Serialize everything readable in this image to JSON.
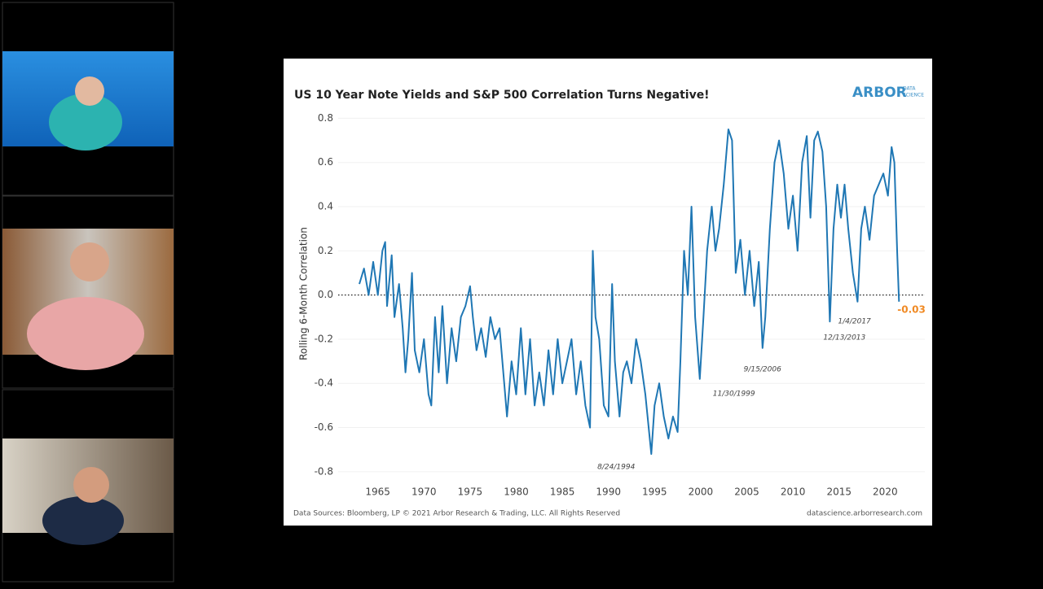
{
  "chart_data": {
    "type": "line",
    "title": "US 10 Year Note Yields and S&P 500 Correlation Turns Negative!",
    "y_label": "Rolling 6-Month Correlation",
    "logo": "ARBOR",
    "logo_sub": [
      "DATA",
      "SCIENCE"
    ],
    "source": "Data Sources: Bloomberg, LP © 2021 Arbor Research & Trading, LLC. All Rights Reserved",
    "url": "datascience.arborresearch.com",
    "xlim": [
      1960.7,
      2024.3
    ],
    "ylim": [
      -0.83,
      0.82
    ],
    "xticks": [
      1965,
      1970,
      1975,
      1980,
      1985,
      1990,
      1995,
      2000,
      2005,
      2010,
      2015,
      2020
    ],
    "yticks": [
      0.8,
      0.6,
      0.4,
      0.2,
      {
        "value": 0,
        "label": "0.0"
      },
      -0.2,
      -0.4,
      -0.6,
      -0.8
    ],
    "hline": 0,
    "grid": true,
    "series": [
      {
        "name": "Rolling 6-Month Correlation",
        "color": "#1f77b4",
        "x": [
          1963.0,
          1963.5,
          1964.0,
          1964.5,
          1965.0,
          1965.5,
          1965.8,
          1966.0,
          1966.5,
          1966.8,
          1967.3,
          1967.7,
          1968.0,
          1968.3,
          1968.7,
          1969.0,
          1969.5,
          1970.0,
          1970.5,
          1970.8,
          1971.2,
          1971.6,
          1972.0,
          1972.5,
          1973.0,
          1973.5,
          1974.0,
          1974.5,
          1975.0,
          1975.3,
          1975.7,
          1976.2,
          1976.7,
          1977.2,
          1977.7,
          1978.2,
          1978.7,
          1979.0,
          1979.5,
          1980.0,
          1980.5,
          1981.0,
          1981.5,
          1982.0,
          1982.5,
          1983.0,
          1983.5,
          1984.0,
          1984.5,
          1985.0,
          1985.5,
          1986.0,
          1986.5,
          1987.0,
          1987.5,
          1988.0,
          1988.3,
          1988.6,
          1989.0,
          1989.5,
          1990.0,
          1990.4,
          1990.7,
          1991.2,
          1991.6,
          1992.0,
          1992.5,
          1993.0,
          1993.5,
          1994.0,
          1994.65,
          1995.0,
          1995.5,
          1996.0,
          1996.5,
          1997.0,
          1997.5,
          1997.8,
          1998.2,
          1998.6,
          1999.0,
          1999.4,
          1999.9,
          2000.3,
          2000.7,
          2001.2,
          2001.6,
          2002.0,
          2002.5,
          2003.0,
          2003.4,
          2003.8,
          2004.3,
          2004.8,
          2005.3,
          2005.8,
          2006.3,
          2006.7,
          2007.0,
          2007.5,
          2008.0,
          2008.5,
          2009.0,
          2009.5,
          2010.0,
          2010.5,
          2011.0,
          2011.5,
          2011.9,
          2012.3,
          2012.7,
          2013.2,
          2013.6,
          2014.0,
          2014.4,
          2014.8,
          2015.2,
          2015.6,
          2016.0,
          2016.5,
          2017.0,
          2017.4,
          2017.8,
          2018.3,
          2018.8,
          2019.3,
          2019.8,
          2020.3,
          2020.7,
          2021.0,
          2021.3,
          2021.5
        ],
        "values": [
          0.05,
          0.12,
          0.0,
          0.15,
          0.0,
          0.2,
          0.24,
          -0.05,
          0.18,
          -0.1,
          0.05,
          -0.15,
          -0.35,
          -0.2,
          0.1,
          -0.25,
          -0.35,
          -0.2,
          -0.45,
          -0.5,
          -0.1,
          -0.35,
          -0.05,
          -0.4,
          -0.15,
          -0.3,
          -0.1,
          -0.05,
          0.04,
          -0.1,
          -0.25,
          -0.15,
          -0.28,
          -0.1,
          -0.2,
          -0.15,
          -0.4,
          -0.55,
          -0.3,
          -0.45,
          -0.15,
          -0.45,
          -0.2,
          -0.5,
          -0.35,
          -0.5,
          -0.25,
          -0.45,
          -0.2,
          -0.4,
          -0.3,
          -0.2,
          -0.45,
          -0.3,
          -0.5,
          -0.6,
          0.2,
          -0.1,
          -0.2,
          -0.5,
          -0.55,
          0.05,
          -0.3,
          -0.55,
          -0.35,
          -0.3,
          -0.4,
          -0.2,
          -0.3,
          -0.45,
          -0.72,
          -0.5,
          -0.4,
          -0.55,
          -0.65,
          -0.55,
          -0.62,
          -0.3,
          0.2,
          0.0,
          0.4,
          -0.1,
          -0.38,
          -0.1,
          0.2,
          0.4,
          0.2,
          0.3,
          0.5,
          0.75,
          0.7,
          0.1,
          0.25,
          0.0,
          0.2,
          -0.05,
          0.15,
          -0.24,
          -0.1,
          0.3,
          0.6,
          0.7,
          0.55,
          0.3,
          0.45,
          0.2,
          0.6,
          0.72,
          0.35,
          0.7,
          0.74,
          0.65,
          0.4,
          -0.12,
          0.3,
          0.5,
          0.35,
          0.5,
          0.3,
          0.1,
          -0.03,
          0.3,
          0.4,
          0.25,
          0.45,
          0.5,
          0.55,
          0.45,
          0.67,
          0.6,
          0.2,
          -0.03
        ]
      }
    ],
    "annotations": [
      {
        "label": "8/24/1994",
        "x": 1994.65,
        "y": -0.72
      },
      {
        "label": "11/30/1999",
        "x": 1999.9,
        "y": -0.38
      },
      {
        "label": "9/15/2006",
        "x": 2006.7,
        "y": -0.24
      },
      {
        "label": "12/13/2013",
        "x": 2014.0,
        "y": -0.12
      },
      {
        "label": "1/4/2017",
        "x": 2017.0,
        "y": -0.03
      },
      {
        "label": "-0.03",
        "x": 2021.5,
        "y": -0.03
      }
    ]
  }
}
